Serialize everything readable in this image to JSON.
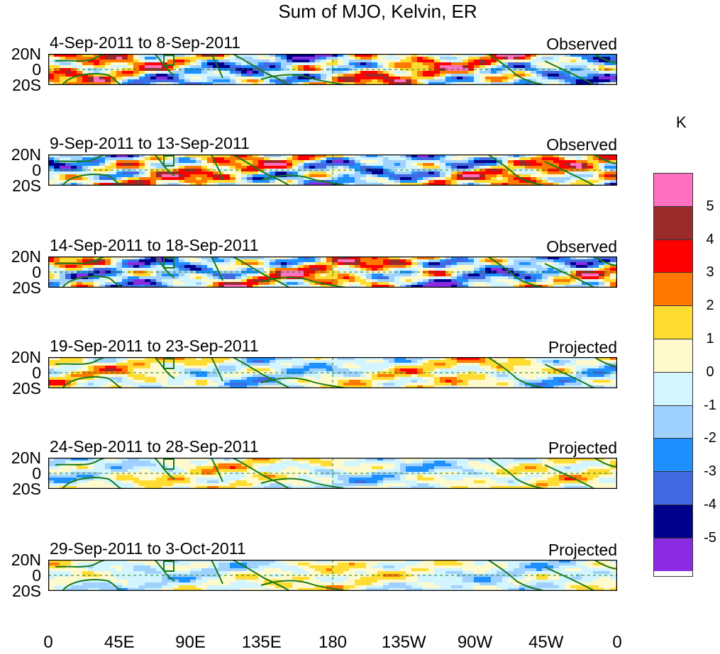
{
  "title": "Sum of MJO, Kelvin, ER",
  "colorbar": {
    "unit": "K",
    "levels": [
      "5",
      "4",
      "3",
      "2",
      "1",
      "0",
      "-1",
      "-2",
      "-3",
      "-4",
      "-5"
    ],
    "colors": [
      "#ff70c0",
      "#9b2a2a",
      "#ff0000",
      "#ff7800",
      "#ffdc32",
      "#fffacd",
      "#d2f5ff",
      "#a0d2ff",
      "#1e90ff",
      "#4169e1",
      "#00008b",
      "#8a2be2"
    ]
  },
  "y_axis_labels": [
    "20N",
    "0",
    "20S"
  ],
  "x_axis_labels": [
    "0",
    "45E",
    "90E",
    "135E",
    "180",
    "135W",
    "90W",
    "45W",
    "0"
  ],
  "panels": [
    {
      "date_range": "4-Sep-2011 to 8-Sep-2011",
      "status": "Observed",
      "intensity": 1.0
    },
    {
      "date_range": "9-Sep-2011 to 13-Sep-2011",
      "status": "Observed",
      "intensity": 1.0
    },
    {
      "date_range": "14-Sep-2011 to 18-Sep-2011",
      "status": "Observed",
      "intensity": 1.0
    },
    {
      "date_range": "19-Sep-2011 to 23-Sep-2011",
      "status": "Projected",
      "intensity": 0.55
    },
    {
      "date_range": "24-Sep-2011 to 28-Sep-2011",
      "status": "Projected",
      "intensity": 0.45
    },
    {
      "date_range": "29-Sep-2011 to 3-Oct-2011",
      "status": "Projected",
      "intensity": 0.4
    }
  ]
}
